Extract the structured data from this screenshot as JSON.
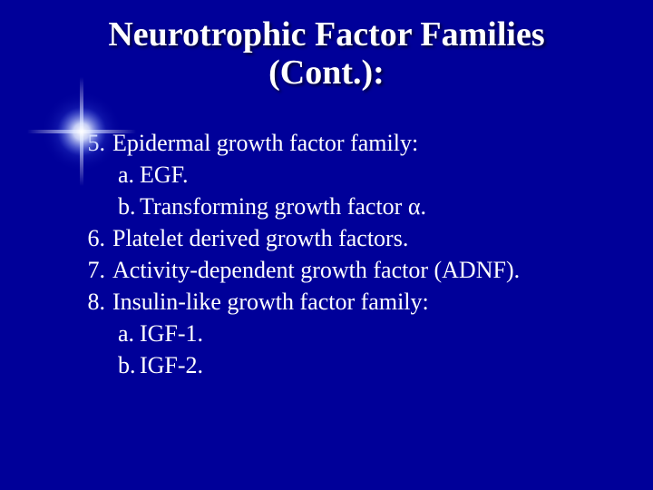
{
  "colors": {
    "background": "#000099",
    "text": "#ffffff",
    "flare_core": "#ffffff",
    "flare_glow": "#b8c8ff"
  },
  "typography": {
    "title_fontsize": 38,
    "body_fontsize": 26,
    "font_family": "Times New Roman"
  },
  "title": {
    "line1": "Neurotrophic Factor Families",
    "line2": "(Cont.):"
  },
  "items": [
    {
      "num": "5.",
      "text": "Epidermal growth factor family:",
      "subs": [
        {
          "snum": "a.",
          "stext": "EGF."
        },
        {
          "snum": "b.",
          "stext": "Transforming growth factor α."
        }
      ]
    },
    {
      "num": "6.",
      "text": "Platelet derived growth factors.",
      "subs": []
    },
    {
      "num": "7.",
      "text": "Activity-dependent growth factor (ADNF).",
      "subs": []
    },
    {
      "num": "8.",
      "text": "Insulin-like growth factor family:",
      "subs": [
        {
          "snum": "a.",
          "stext": "IGF-1."
        },
        {
          "snum": "b.",
          "stext": "IGF-2."
        }
      ]
    }
  ]
}
